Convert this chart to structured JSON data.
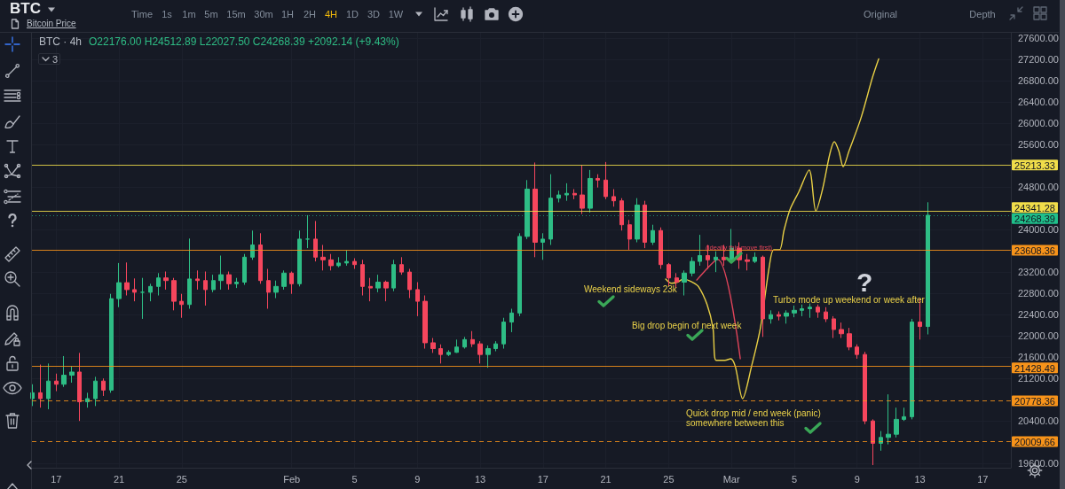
{
  "chart_data": {
    "type": "candlestick",
    "title": "BTC",
    "subtitle": "Bitcoin Price",
    "annotations": [
      "BTC · 4h",
      "O22176.00 H24512.89 L22027.50 C24268.39 +2092.14 (+9.43%)",
      "Time",
      "1s",
      "1m",
      "5m",
      "15m",
      "30m",
      "1H",
      "2H",
      "4H",
      "1D",
      "3D",
      "1W",
      "Original",
      "Depth",
      "3",
      "Weekend sideways 23k",
      "Big drop begin of next week",
      "Quick drop mid / end week (panic)\nsomewhere between this",
      "Turbo mode up weekend or week after",
      "?",
      "(Ideally this move first)"
    ],
    "series": [
      {
        "x": [
          "--01-15T12:00",
          "--01-16",
          "--01-16T12:00",
          "--01-17",
          "--01-17T12:00",
          "--01-18",
          "--01-18T12:00",
          "--01-19",
          "--01-19T12:00",
          "--01-20",
          "--01-20T12:00",
          "--01-21",
          "--01-21T12:00",
          "--01-22",
          "--01-22T12:00",
          "--01-23",
          "--01-23T12:00",
          "--01-24",
          "--01-24T12:00",
          "--01-25",
          "--01-25T12:00",
          "--01-26",
          "--01-26T12:00",
          "--01-27",
          "--01-27T12:00",
          "--01-28",
          "--01-28T12:00",
          "--01-29",
          "--01-29T12:00",
          "--01-30",
          "--01-30T12:00",
          "--01-31",
          "--01-31T12:00",
          "--02-01",
          "--02-01T12:00",
          "--02-02",
          "--02-02T12:00",
          "--02-03",
          "--02-03T12:00",
          "--02-04",
          "--02-04T12:00",
          "--02-05",
          "--02-05T12:00",
          "--02-06",
          "--02-06T12:00",
          "--02-07",
          "--02-07T12:00",
          "--02-08",
          "--02-08T12:00",
          "--02-09",
          "--02-09T12:00",
          "--02-10",
          "--02-10T12:00",
          "--02-11",
          "--02-11T12:00",
          "--02-12",
          "--02-12T12:00",
          "--02-13",
          "--02-13T12:00",
          "--02-14",
          "--02-14T12:00",
          "--02-15",
          "--02-15T12:00",
          "--02-16",
          "--02-16T12:00",
          "--02-17",
          "--02-17T12:00",
          "--02-18",
          "--02-18T12:00",
          "--02-19",
          "--02-19T12:00",
          "--02-20",
          "--02-20T12:00",
          "--02-21",
          "--02-21T12:00",
          "--02-22",
          "--02-22T12:00",
          "--02-23",
          "--02-23T12:00",
          "--02-24",
          "--02-24T12:00",
          "--02-25",
          "--02-25T12:00",
          "--02-26",
          "--02-26T12:00",
          "--02-27",
          "--02-27T12:00",
          "--02-28",
          "--02-28T12:00",
          "--03-01",
          "--03-01T12:00",
          "--03-02",
          "--03-02T12:00",
          "--03-03",
          "--03-03T12:00",
          "--03-04",
          "--03-04T12:00",
          "--03-05",
          "--03-05T12:00",
          "--03-06",
          "--03-06T12:00",
          "--03-07",
          "--03-07T12:00",
          "--03-08",
          "--03-08T12:00",
          "--03-09",
          "--03-09T12:00",
          "--03-10",
          "--03-10T12:00",
          "--03-11",
          "--03-11T12:00",
          "--03-12",
          "--03-12T12:00",
          "--03-13",
          "--03-13T12:00"
        ],
        "ohlc": [
          [
            20820,
            21090,
            20680,
            20930
          ],
          [
            20930,
            21460,
            20650,
            20820
          ],
          [
            20820,
            21480,
            20620,
            21150
          ],
          [
            21150,
            21290,
            20960,
            21090
          ],
          [
            21090,
            21620,
            21040,
            21260
          ],
          [
            21260,
            21430,
            21120,
            21320
          ],
          [
            21320,
            21680,
            20400,
            20760
          ],
          [
            20760,
            20930,
            20650,
            20820
          ],
          [
            20820,
            21230,
            20680,
            21150
          ],
          [
            21150,
            21200,
            20870,
            20980
          ],
          [
            20980,
            22790,
            20930,
            22700
          ],
          [
            22700,
            23370,
            22540,
            23000
          ],
          [
            23000,
            23380,
            22760,
            22870
          ],
          [
            22870,
            23080,
            22650,
            22820
          ],
          [
            22820,
            23090,
            22320,
            22820
          ],
          [
            22820,
            22980,
            22650,
            22930
          ],
          [
            22930,
            23180,
            22760,
            23090
          ],
          [
            23090,
            23210,
            22870,
            23040
          ],
          [
            23040,
            23090,
            22480,
            22650
          ],
          [
            22650,
            22790,
            22340,
            22590
          ],
          [
            22590,
            23830,
            22510,
            23070
          ],
          [
            23070,
            23230,
            22870,
            23040
          ],
          [
            23040,
            23210,
            22570,
            22870
          ],
          [
            22870,
            23150,
            22820,
            23040
          ],
          [
            23040,
            23510,
            22870,
            23150
          ],
          [
            23150,
            23210,
            22870,
            22980
          ],
          [
            22980,
            23090,
            22900,
            23010
          ],
          [
            23010,
            23540,
            22960,
            23480
          ],
          [
            23480,
            23980,
            23430,
            23710
          ],
          [
            23710,
            23930,
            22980,
            23040
          ],
          [
            23040,
            23260,
            22510,
            22820
          ],
          [
            22820,
            23040,
            22710,
            22930
          ],
          [
            22930,
            23230,
            22870,
            23180
          ],
          [
            23180,
            23210,
            22790,
            22980
          ],
          [
            22980,
            23980,
            22930,
            23820
          ],
          [
            23820,
            24270,
            23650,
            23820
          ],
          [
            23820,
            24160,
            23400,
            23480
          ],
          [
            23480,
            23710,
            23230,
            23430
          ],
          [
            23430,
            23540,
            23230,
            23320
          ],
          [
            23320,
            23480,
            23290,
            23370
          ],
          [
            23370,
            23610,
            23320,
            23400
          ],
          [
            23400,
            23460,
            23260,
            23340
          ],
          [
            23340,
            23430,
            22760,
            22930
          ],
          [
            22930,
            23090,
            22650,
            22900
          ],
          [
            22900,
            23150,
            22820,
            23010
          ],
          [
            23010,
            23040,
            22650,
            22900
          ],
          [
            22900,
            23430,
            22840,
            23340
          ],
          [
            23340,
            23480,
            23150,
            23200
          ],
          [
            23200,
            23260,
            22710,
            22870
          ],
          [
            22870,
            23010,
            22370,
            22650
          ],
          [
            22650,
            22760,
            21760,
            21870
          ],
          [
            21870,
            21960,
            21680,
            21760
          ],
          [
            21760,
            21840,
            21480,
            21650
          ],
          [
            21650,
            21730,
            21620,
            21690
          ],
          [
            21690,
            21930,
            21680,
            21790
          ],
          [
            21790,
            21980,
            21760,
            21930
          ],
          [
            21930,
            22090,
            21790,
            21850
          ],
          [
            21850,
            21900,
            21480,
            21650
          ],
          [
            21650,
            21820,
            21400,
            21760
          ],
          [
            21760,
            21900,
            21710,
            21850
          ],
          [
            21850,
            22340,
            21760,
            22260
          ],
          [
            22260,
            22510,
            22070,
            22430
          ],
          [
            22430,
            23930,
            22370,
            23870
          ],
          [
            23870,
            24930,
            23820,
            24760
          ],
          [
            24760,
            25260,
            23480,
            23760
          ],
          [
            23760,
            23930,
            23430,
            23820
          ],
          [
            23820,
            25040,
            23710,
            24590
          ],
          [
            24590,
            24730,
            24510,
            24650
          ],
          [
            24650,
            24870,
            24540,
            24680
          ],
          [
            24680,
            24760,
            24570,
            24650
          ],
          [
            24650,
            25210,
            24290,
            24400
          ],
          [
            24400,
            25120,
            24320,
            24960
          ],
          [
            24960,
            25040,
            24790,
            24930
          ],
          [
            24930,
            25270,
            24570,
            24620
          ],
          [
            24620,
            24760,
            24430,
            24540
          ],
          [
            24540,
            24590,
            23980,
            24090
          ],
          [
            24090,
            24180,
            23620,
            23820
          ],
          [
            23820,
            24590,
            23760,
            24460
          ],
          [
            24460,
            24540,
            23650,
            23760
          ],
          [
            23760,
            24090,
            23710,
            23980
          ],
          [
            23980,
            24040,
            23260,
            23340
          ],
          [
            23340,
            23370,
            22930,
            23090
          ],
          [
            23090,
            23180,
            22900,
            23010
          ],
          [
            23010,
            23230,
            22760,
            23180
          ],
          [
            23180,
            23480,
            23120,
            23400
          ],
          [
            23400,
            23900,
            23320,
            23510
          ],
          [
            23510,
            23710,
            23260,
            23430
          ],
          [
            23430,
            23590,
            23200,
            23480
          ],
          [
            23480,
            23710,
            23320,
            23430
          ],
          [
            23430,
            24010,
            23370,
            23650
          ],
          [
            23650,
            23760,
            23260,
            23430
          ],
          [
            23430,
            23540,
            23230,
            23400
          ],
          [
            23400,
            23570,
            23370,
            23480
          ],
          [
            23480,
            23510,
            21980,
            22320
          ],
          [
            22320,
            22480,
            22230,
            22400
          ],
          [
            22400,
            22460,
            22290,
            22370
          ],
          [
            22370,
            22480,
            22230,
            22430
          ],
          [
            22430,
            22570,
            22350,
            22480
          ],
          [
            22480,
            22590,
            22370,
            22510
          ],
          [
            22510,
            22610,
            22340,
            22540
          ],
          [
            22540,
            22590,
            22340,
            22450
          ],
          [
            22450,
            22540,
            22260,
            22320
          ],
          [
            22320,
            22370,
            21960,
            22120
          ],
          [
            22120,
            22250,
            21960,
            22040
          ],
          [
            22040,
            22150,
            21730,
            21790
          ],
          [
            21790,
            21840,
            21570,
            21650
          ],
          [
            21650,
            21700,
            20340,
            20400
          ],
          [
            20400,
            20430,
            19570,
            19980
          ],
          [
            19980,
            20210,
            19840,
            20090
          ],
          [
            20090,
            20900,
            19960,
            20150
          ],
          [
            20150,
            20650,
            20090,
            20430
          ],
          [
            20430,
            20650,
            20400,
            20480
          ],
          [
            20480,
            22320,
            20430,
            22260
          ],
          [
            22260,
            22700,
            21930,
            22176
          ],
          [
            22176.0,
            24512.89,
            22027.5,
            24268.39
          ]
        ],
        "colors": [
          "#2ebd85",
          "#f6465d",
          "#2ebd85",
          "#f6465d",
          "#2ebd85",
          "#2ebd85",
          "#f6465d",
          "#2ebd85",
          "#2ebd85",
          "#f6465d",
          "#2ebd85",
          "#2ebd85",
          "#f6465d",
          "#f6465d",
          "#2ebd85",
          "#2ebd85",
          "#2ebd85",
          "#f6465d",
          "#f6465d",
          "#f6465d",
          "#2ebd85",
          "#f6465d",
          "#f6465d",
          "#2ebd85",
          "#2ebd85",
          "#f6465d",
          "#2ebd85",
          "#2ebd85",
          "#2ebd85",
          "#f6465d",
          "#f6465d",
          "#2ebd85",
          "#2ebd85",
          "#f6465d",
          "#2ebd85",
          "#2ebd85",
          "#f6465d",
          "#f6465d",
          "#f6465d",
          "#2ebd85",
          "#2ebd85",
          "#f6465d",
          "#f6465d",
          "#f6465d",
          "#2ebd85",
          "#f6465d",
          "#2ebd85",
          "#f6465d",
          "#f6465d",
          "#f6465d",
          "#f6465d",
          "#f6465d",
          "#f6465d",
          "#2ebd85",
          "#2ebd85",
          "#2ebd85",
          "#f6465d",
          "#f6465d",
          "#2ebd85",
          "#2ebd85",
          "#2ebd85",
          "#2ebd85",
          "#2ebd85",
          "#2ebd85",
          "#f6465d",
          "#2ebd85",
          "#2ebd85",
          "#2ebd85",
          "#2ebd85",
          "#f6465d",
          "#f6465d",
          "#2ebd85",
          "#f6465d",
          "#f6465d",
          "#f6465d",
          "#f6465d",
          "#f6465d",
          "#2ebd85",
          "#f6465d",
          "#2ebd85",
          "#f6465d",
          "#f6465d",
          "#f6465d",
          "#2ebd85",
          "#2ebd85",
          "#2ebd85",
          "#f6465d",
          "#2ebd85",
          "#f6465d",
          "#2ebd85",
          "#f6465d",
          "#f6465d",
          "#2ebd85",
          "#f6465d",
          "#2ebd85",
          "#f6465d",
          "#2ebd85",
          "#2ebd85",
          "#2ebd85",
          "#2ebd85",
          "#f6465d",
          "#f6465d",
          "#f6465d",
          "#f6465d",
          "#f6465d",
          "#f6465d",
          "#f6465d",
          "#f6465d",
          "#2ebd85",
          "#2ebd85",
          "#2ebd85",
          "#2ebd85",
          "#2ebd85",
          "#f6465d",
          "#2ebd85"
        ]
      },
      {
        "type": "line",
        "color": "#e8cf45",
        "x": [
          "--02-24T19:30",
          "--02-25T04:30",
          "--02-25T13:30",
          "--02-25T22:30",
          "--02-26T12:15",
          "--02-26T21:30",
          "--02-27T10:45",
          "--02-27T19:45",
          "--02-28T00:30",
          "--02-28T14:00",
          "--02-28T22:45",
          "--03-01T05:45",
          "--03-01T17:00",
          "--03-02T06:45",
          "--03-02T20:15",
          "--03-03T10:00",
          "--03-03T16:30",
          "--03-04T01:30",
          "--03-04T08:15",
          "--03-04T17:15",
          "--03-05T07:00",
          "--03-05T22:45",
          "--03-06T09:00",
          "--03-06T19:15",
          "--03-07T06:30",
          "--03-07T13:15",
          "--03-07T20:00",
          "--03-08T02:45",
          "--03-08T11:45",
          "--03-09T05:45",
          "--03-09T23:45",
          "--03-10T09:00"
        ],
        "values": [
          23070,
          22990,
          23010,
          23070,
          23010,
          22930,
          22590,
          22150,
          21540,
          21540,
          21570,
          21430,
          20820,
          21430,
          22150,
          23320,
          23620,
          23620,
          23980,
          24370,
          24710,
          25120,
          24350,
          24760,
          25430,
          25650,
          25480,
          25180,
          25480,
          26090,
          26870,
          27210
        ]
      },
      {
        "type": "line",
        "color": "#e0445a",
        "x": [
          "--02-26T19:00",
          "--02-28T03:00",
          "--03-01T13:30"
        ],
        "values": [
          23050,
          23440,
          21570
        ]
      }
    ],
    "xlim": [
      "--01-15T11:00",
      "--03-18T19:00"
    ],
    "xticks": [
      {
        "value": "--01-17",
        "label": "17"
      },
      {
        "value": "--01-21",
        "label": "21"
      },
      {
        "value": "--01-25",
        "label": "25"
      },
      {
        "value": "--02-01",
        "label": "Feb"
      },
      {
        "value": "--02-05",
        "label": "5"
      },
      {
        "value": "--02-09",
        "label": "9"
      },
      {
        "value": "--02-13",
        "label": "13"
      },
      {
        "value": "--02-17",
        "label": "17"
      },
      {
        "value": "--02-21",
        "label": "21"
      },
      {
        "value": "--02-25",
        "label": "25"
      },
      {
        "value": "--03-01",
        "label": "Mar"
      },
      {
        "value": "--03-05",
        "label": "5"
      },
      {
        "value": "--03-09",
        "label": "9"
      },
      {
        "value": "--03-13",
        "label": "13"
      },
      {
        "value": "--03-17",
        "label": "17"
      }
    ],
    "ylim": [
      19520,
      27700
    ],
    "yticks": [
      {
        "value": 19600,
        "label": "19600.00"
      },
      {
        "value": 20400,
        "label": "20400.00"
      },
      {
        "value": 21200,
        "label": "21200.00"
      },
      {
        "value": 21600,
        "label": "21600.00"
      },
      {
        "value": 22000,
        "label": "22000.00"
      },
      {
        "value": 22400,
        "label": "22400.00"
      },
      {
        "value": 22800,
        "label": "22800.00"
      },
      {
        "value": 23200,
        "label": "23200.00"
      },
      {
        "value": 24000,
        "label": "24000.00"
      },
      {
        "value": 24800,
        "label": "24800.00"
      },
      {
        "value": 25600,
        "label": "25600.00"
      },
      {
        "value": 26000,
        "label": "26000.00"
      },
      {
        "value": 26400,
        "label": "26400.00"
      },
      {
        "value": 26800,
        "label": "26800.00"
      },
      {
        "value": 27200,
        "label": "27200.00"
      },
      {
        "value": 27600,
        "label": "27600.00"
      }
    ],
    "ref_lines": [
      {
        "axis": "y",
        "value": 25213.33,
        "label": "25213.33",
        "color": "#f0dd4a"
      },
      {
        "axis": "y",
        "value": 24341.28,
        "label": "24341.28",
        "color": "#f0dd4a"
      },
      {
        "axis": "y",
        "value": 24268.39,
        "label": "24268.39",
        "color": "#1fbf8a",
        "line_style": "dotted"
      },
      {
        "axis": "y",
        "value": 23608.36,
        "label": "23608.36",
        "color": "#f7931a"
      },
      {
        "axis": "y",
        "value": 21428.49,
        "label": "21428.49",
        "color": "#f7931a"
      },
      {
        "axis": "y",
        "value": 20778.36,
        "label": "20778.36",
        "color": "#f7931a",
        "line_style": "dashed"
      },
      {
        "axis": "y",
        "value": 20009.66,
        "label": "20009.66",
        "color": "#f7931a",
        "line_style": "dashed"
      }
    ],
    "grid": true
  }
}
